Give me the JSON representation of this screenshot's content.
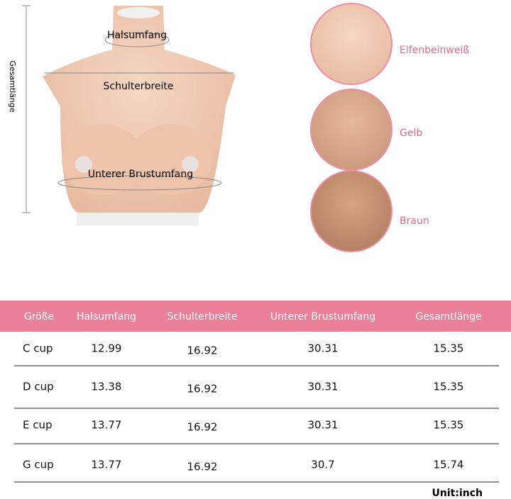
{
  "diagram": {
    "neck": "Halsumfang",
    "shoulder": "Schulterbreite",
    "underbust": "Unterer Brustumfang",
    "length": "Gesamtlänge"
  },
  "colors": [
    "Elfenbeinweiß",
    "Gelb",
    "Braun"
  ],
  "table": {
    "header": [
      "Größe",
      "Halsumfang",
      "Schulterbreite",
      "Unterer Brustumfang",
      "Gesamtlänge"
    ],
    "rows": [
      [
        "C cup",
        "12.99",
        "16.92",
        "30.31",
        "15.35"
      ],
      [
        "D cup",
        "13.38",
        "16.92",
        "30.31",
        "15.35"
      ],
      [
        "E cup",
        "13.77",
        "16.92",
        "30.31",
        "15.35"
      ],
      [
        "G cup",
        "13.77",
        "16.92",
        "30.7",
        "15.74"
      ]
    ]
  },
  "unit": "Unit:inch"
}
